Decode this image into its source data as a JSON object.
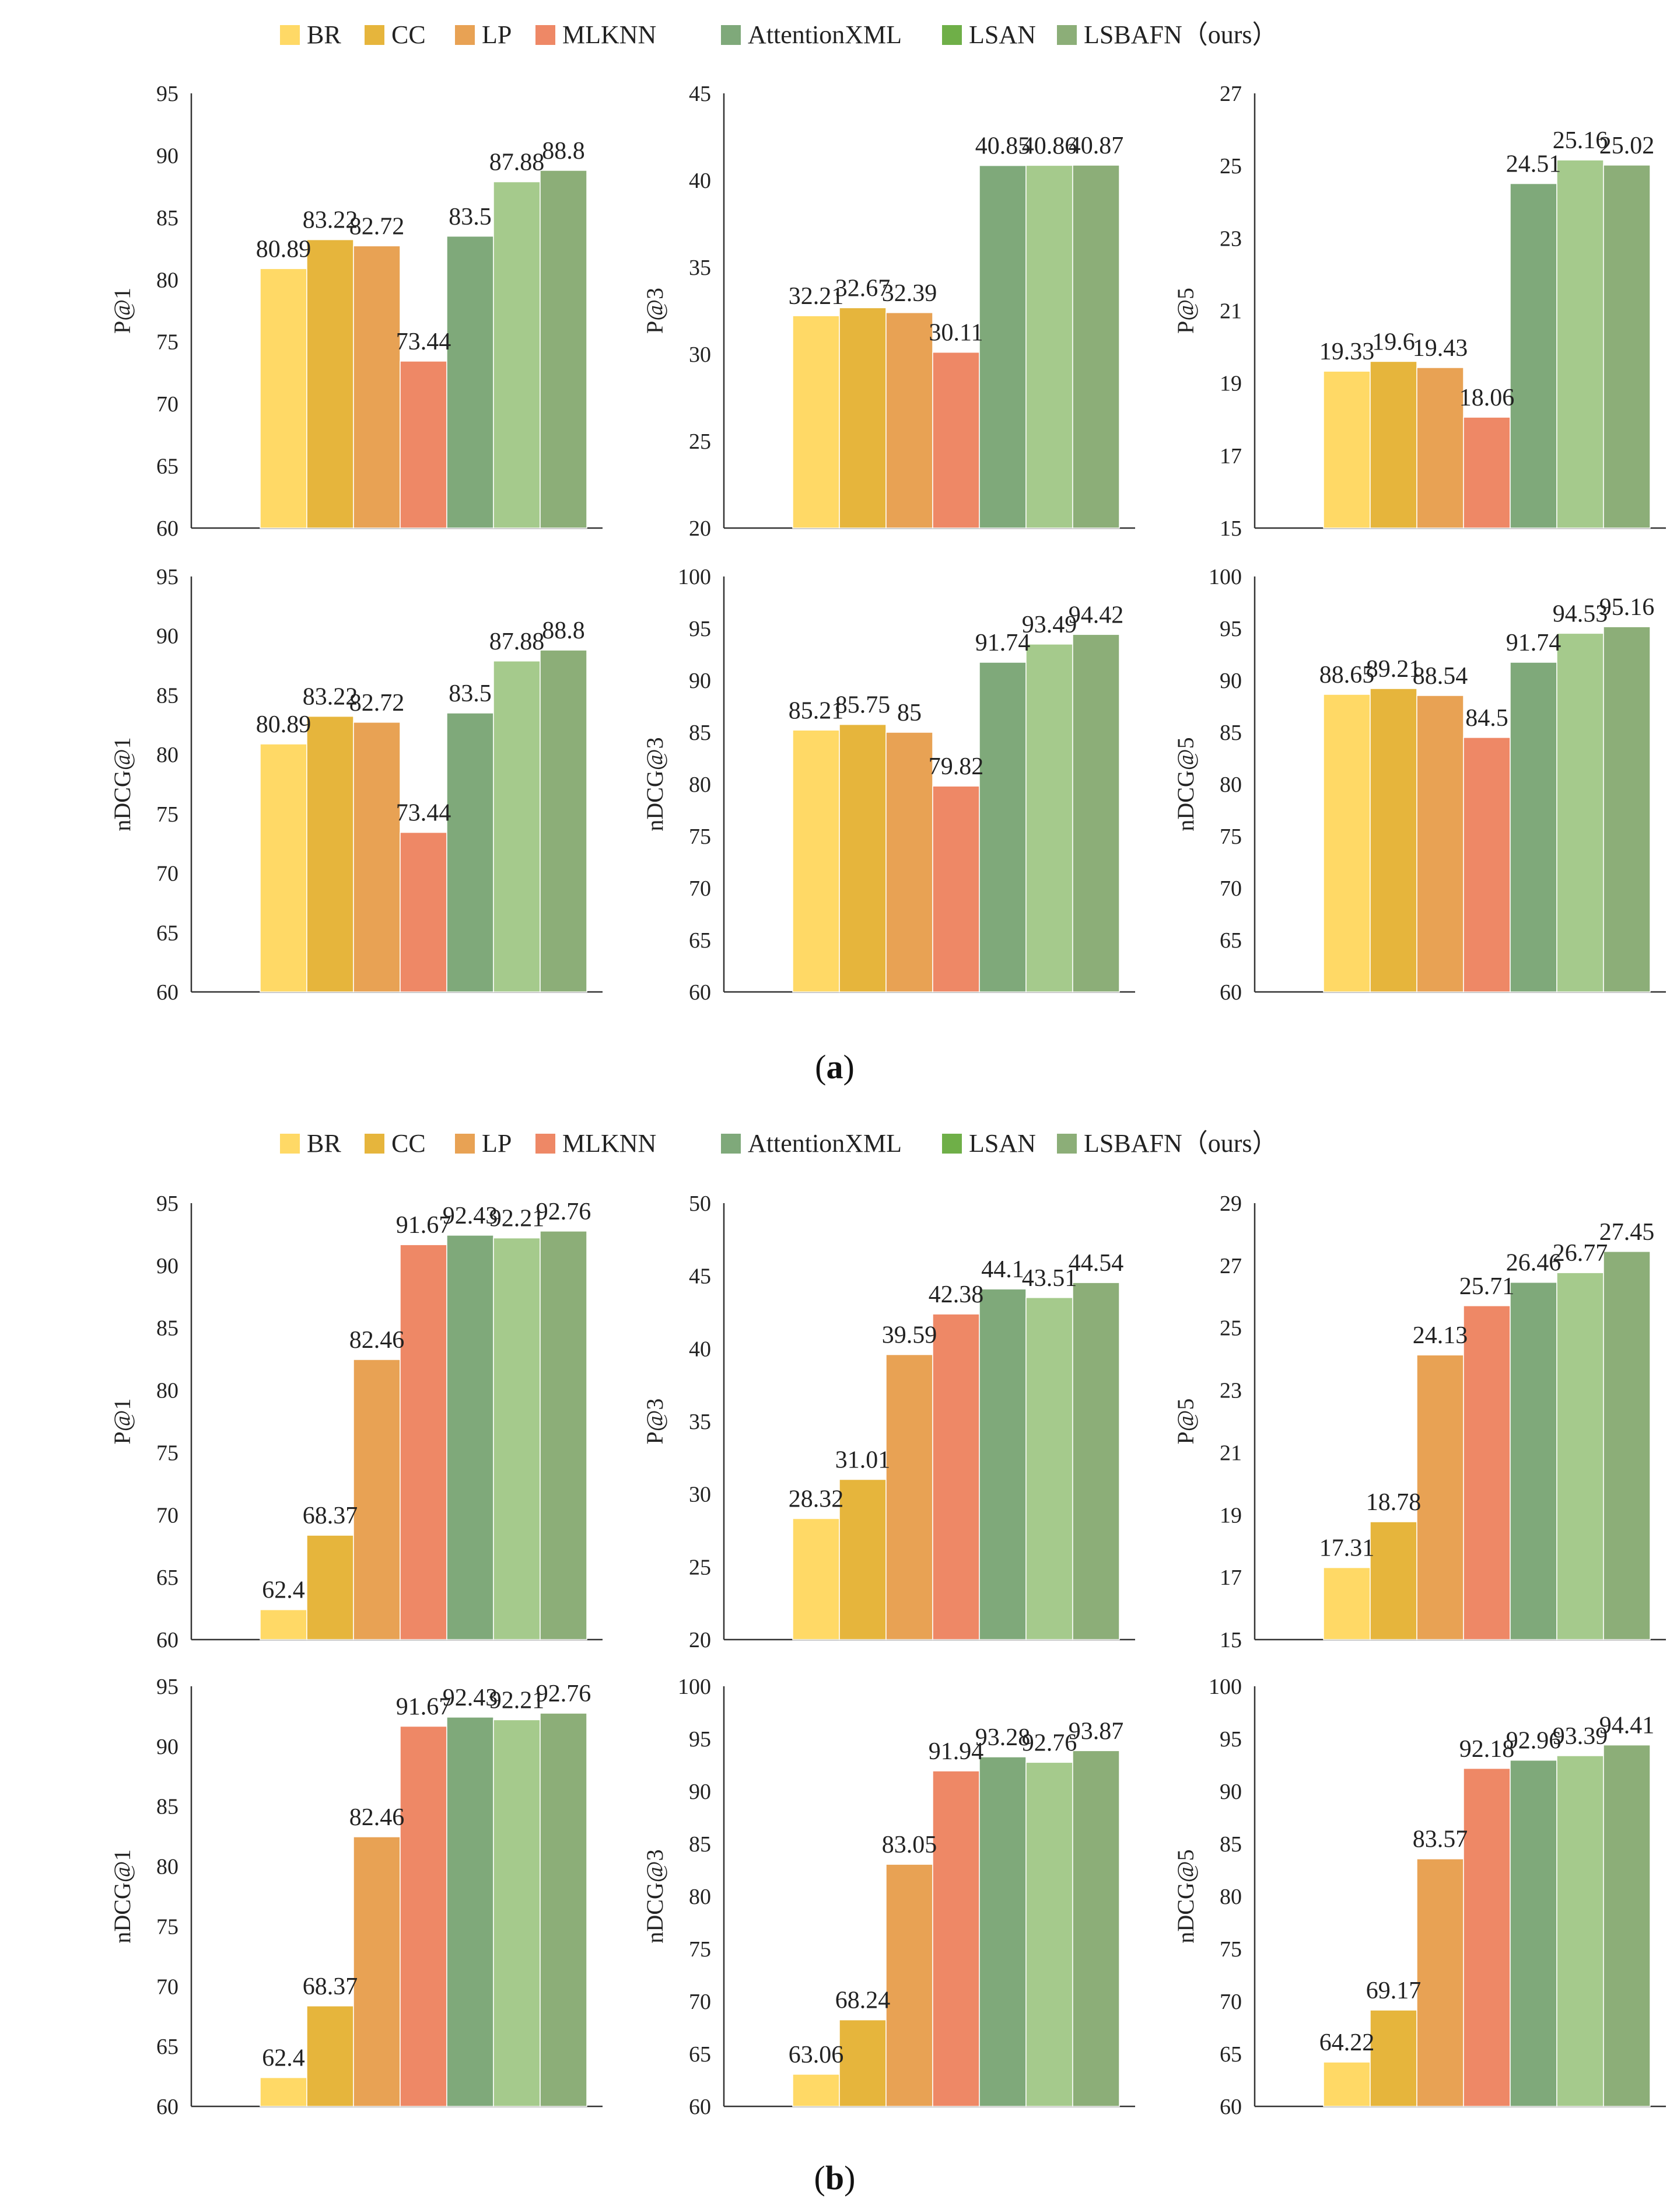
{
  "legend": [
    {
      "name": "BR",
      "color": "#FFD966"
    },
    {
      "name": "CC",
      "color": "#E6B53C"
    },
    {
      "name": "LP",
      "color": "#E8A254"
    },
    {
      "name": "MLKNN",
      "color": "#EE8866"
    },
    {
      "name": "AttentionXML",
      "color": "#7FA97A"
    },
    {
      "name": "LSAN",
      "color": "#6FAF48"
    },
    {
      "name": "LSBAFN（ours）",
      "color": "#8CAE78"
    }
  ],
  "bar_colors": [
    "#FFD966",
    "#E6B53C",
    "#E8A254",
    "#EE8866",
    "#7FA97A",
    "#A5CA8C",
    "#8CAE78"
  ],
  "captions": {
    "a": {
      "open": "(",
      "letter": "a",
      "close": ")"
    },
    "b": {
      "open": "(",
      "letter": "b",
      "close": ")"
    }
  },
  "chart_data": [
    {
      "type": "bar",
      "group": "a",
      "ylabel": "P@1",
      "ylim": [
        60,
        95
      ],
      "ticks": [
        60,
        65,
        70,
        75,
        80,
        85,
        90,
        95
      ],
      "categories": [
        "BR",
        "CC",
        "LP",
        "MLKNN",
        "AttentionXML",
        "LSAN",
        "LSBAFN"
      ],
      "values": [
        80.89,
        83.22,
        82.72,
        73.44,
        83.5,
        87.88,
        88.8
      ],
      "labels": [
        "80.89",
        "83.22",
        "82.72",
        "73.44",
        "83.5",
        "87.88",
        "88.8"
      ]
    },
    {
      "type": "bar",
      "group": "a",
      "ylabel": "P@3",
      "ylim": [
        20,
        45
      ],
      "ticks": [
        20,
        25,
        30,
        35,
        40,
        45
      ],
      "categories": [
        "BR",
        "CC",
        "LP",
        "MLKNN",
        "AttentionXML",
        "LSAN",
        "LSBAFN"
      ],
      "values": [
        32.21,
        32.67,
        32.39,
        30.11,
        40.85,
        40.86,
        40.87
      ],
      "labels": [
        "32.21",
        "32.67",
        "32.39",
        "30.11",
        "40.85",
        "40.86",
        "40.87"
      ]
    },
    {
      "type": "bar",
      "group": "a",
      "ylabel": "P@5",
      "ylim": [
        15,
        27
      ],
      "ticks": [
        15,
        17,
        19,
        21,
        23,
        25,
        27
      ],
      "categories": [
        "BR",
        "CC",
        "LP",
        "MLKNN",
        "AttentionXML",
        "LSAN",
        "LSBAFN"
      ],
      "values": [
        19.33,
        19.6,
        19.43,
        18.06,
        24.51,
        25.16,
        25.02
      ],
      "labels": [
        "19.33",
        "19.6",
        "19.43",
        "18.06",
        "24.51",
        "25.16",
        "25.02"
      ]
    },
    {
      "type": "bar",
      "group": "a",
      "ylabel": "nDCG@1",
      "ylim": [
        60,
        95
      ],
      "ticks": [
        60,
        65,
        70,
        75,
        80,
        85,
        90,
        95
      ],
      "categories": [
        "BR",
        "CC",
        "LP",
        "MLKNN",
        "AttentionXML",
        "LSAN",
        "LSBAFN"
      ],
      "values": [
        80.89,
        83.22,
        82.72,
        73.44,
        83.5,
        87.88,
        88.8
      ],
      "labels": [
        "80.89",
        "83.22",
        "82.72",
        "73.44",
        "83.5",
        "87.88",
        "88.8"
      ]
    },
    {
      "type": "bar",
      "group": "a",
      "ylabel": "nDCG@3",
      "ylim": [
        60,
        100
      ],
      "ticks": [
        60,
        65,
        70,
        75,
        80,
        85,
        90,
        95,
        100
      ],
      "categories": [
        "BR",
        "CC",
        "LP",
        "MLKNN",
        "AttentionXML",
        "LSAN",
        "LSBAFN"
      ],
      "values": [
        85.21,
        85.75,
        85,
        79.82,
        91.74,
        93.49,
        94.42
      ],
      "labels": [
        "85.21",
        "85.75",
        "85",
        "79.82",
        "91.74",
        "93.49",
        "94.42"
      ]
    },
    {
      "type": "bar",
      "group": "a",
      "ylabel": "nDCG@5",
      "ylim": [
        60,
        100
      ],
      "ticks": [
        60,
        65,
        70,
        75,
        80,
        85,
        90,
        95,
        100
      ],
      "categories": [
        "BR",
        "CC",
        "LP",
        "MLKNN",
        "AttentionXML",
        "LSAN",
        "LSBAFN"
      ],
      "values": [
        88.65,
        89.21,
        88.54,
        84.5,
        91.74,
        94.53,
        95.16
      ],
      "labels": [
        "88.65",
        "89.21",
        "88.54",
        "84.5",
        "91.74",
        "94.53",
        "95.16"
      ]
    },
    {
      "type": "bar",
      "group": "b",
      "ylabel": "P@1",
      "ylim": [
        60,
        95
      ],
      "ticks": [
        60,
        65,
        70,
        75,
        80,
        85,
        90,
        95
      ],
      "categories": [
        "BR",
        "CC",
        "LP",
        "MLKNN",
        "AttentionXML",
        "LSAN",
        "LSBAFN"
      ],
      "values": [
        62.4,
        68.37,
        82.46,
        91.67,
        92.43,
        92.21,
        92.76
      ],
      "labels": [
        "62.4",
        "68.37",
        "82.46",
        "91.67",
        "92.43",
        "92.21",
        "92.76"
      ]
    },
    {
      "type": "bar",
      "group": "b",
      "ylabel": "P@3",
      "ylim": [
        20,
        50
      ],
      "ticks": [
        20,
        25,
        30,
        35,
        40,
        45,
        50
      ],
      "categories": [
        "BR",
        "CC",
        "LP",
        "MLKNN",
        "AttentionXML",
        "LSAN",
        "LSBAFN"
      ],
      "values": [
        28.32,
        31.01,
        39.59,
        42.38,
        44.1,
        43.51,
        44.54
      ],
      "labels": [
        "28.32",
        "31.01",
        "39.59",
        "42.38",
        "44.1",
        "43.51",
        "44.54"
      ]
    },
    {
      "type": "bar",
      "group": "b",
      "ylabel": "P@5",
      "ylim": [
        15,
        29
      ],
      "ticks": [
        15,
        17,
        19,
        21,
        23,
        25,
        27,
        29
      ],
      "categories": [
        "BR",
        "CC",
        "LP",
        "MLKNN",
        "AttentionXML",
        "LSAN",
        "LSBAFN"
      ],
      "values": [
        17.31,
        18.78,
        24.13,
        25.71,
        26.46,
        26.77,
        27.45
      ],
      "labels": [
        "17.31",
        "18.78",
        "24.13",
        "25.71",
        "26.46",
        "26.77",
        "27.45"
      ]
    },
    {
      "type": "bar",
      "group": "b",
      "ylabel": "nDCG@1",
      "ylim": [
        60,
        95
      ],
      "ticks": [
        60,
        65,
        70,
        75,
        80,
        85,
        90,
        95
      ],
      "categories": [
        "BR",
        "CC",
        "LP",
        "MLKNN",
        "AttentionXML",
        "LSAN",
        "LSBAFN"
      ],
      "values": [
        62.4,
        68.37,
        82.46,
        91.67,
        92.43,
        92.21,
        92.76
      ],
      "labels": [
        "62.4",
        "68.37",
        "82.46",
        "91.67",
        "92.43",
        "92.21",
        "92.76"
      ]
    },
    {
      "type": "bar",
      "group": "b",
      "ylabel": "nDCG@3",
      "ylim": [
        60,
        100
      ],
      "ticks": [
        60,
        65,
        70,
        75,
        80,
        85,
        90,
        95,
        100
      ],
      "categories": [
        "BR",
        "CC",
        "LP",
        "MLKNN",
        "AttentionXML",
        "LSAN",
        "LSBAFN"
      ],
      "values": [
        63.06,
        68.24,
        83.05,
        91.94,
        93.28,
        92.76,
        93.87
      ],
      "labels": [
        "63.06",
        "68.24",
        "83.05",
        "91.94",
        "93.28",
        "92.76",
        "93.87"
      ]
    },
    {
      "type": "bar",
      "group": "b",
      "ylabel": "nDCG@5",
      "ylim": [
        60,
        100
      ],
      "ticks": [
        60,
        65,
        70,
        75,
        80,
        85,
        90,
        95,
        100
      ],
      "categories": [
        "BR",
        "CC",
        "LP",
        "MLKNN",
        "AttentionXML",
        "LSAN",
        "LSBAFN"
      ],
      "values": [
        64.22,
        69.17,
        83.57,
        92.18,
        92.96,
        93.39,
        94.41
      ],
      "labels": [
        "64.22",
        "69.17",
        "83.57",
        "92.18",
        "92.96",
        "93.39",
        "94.41"
      ]
    }
  ]
}
